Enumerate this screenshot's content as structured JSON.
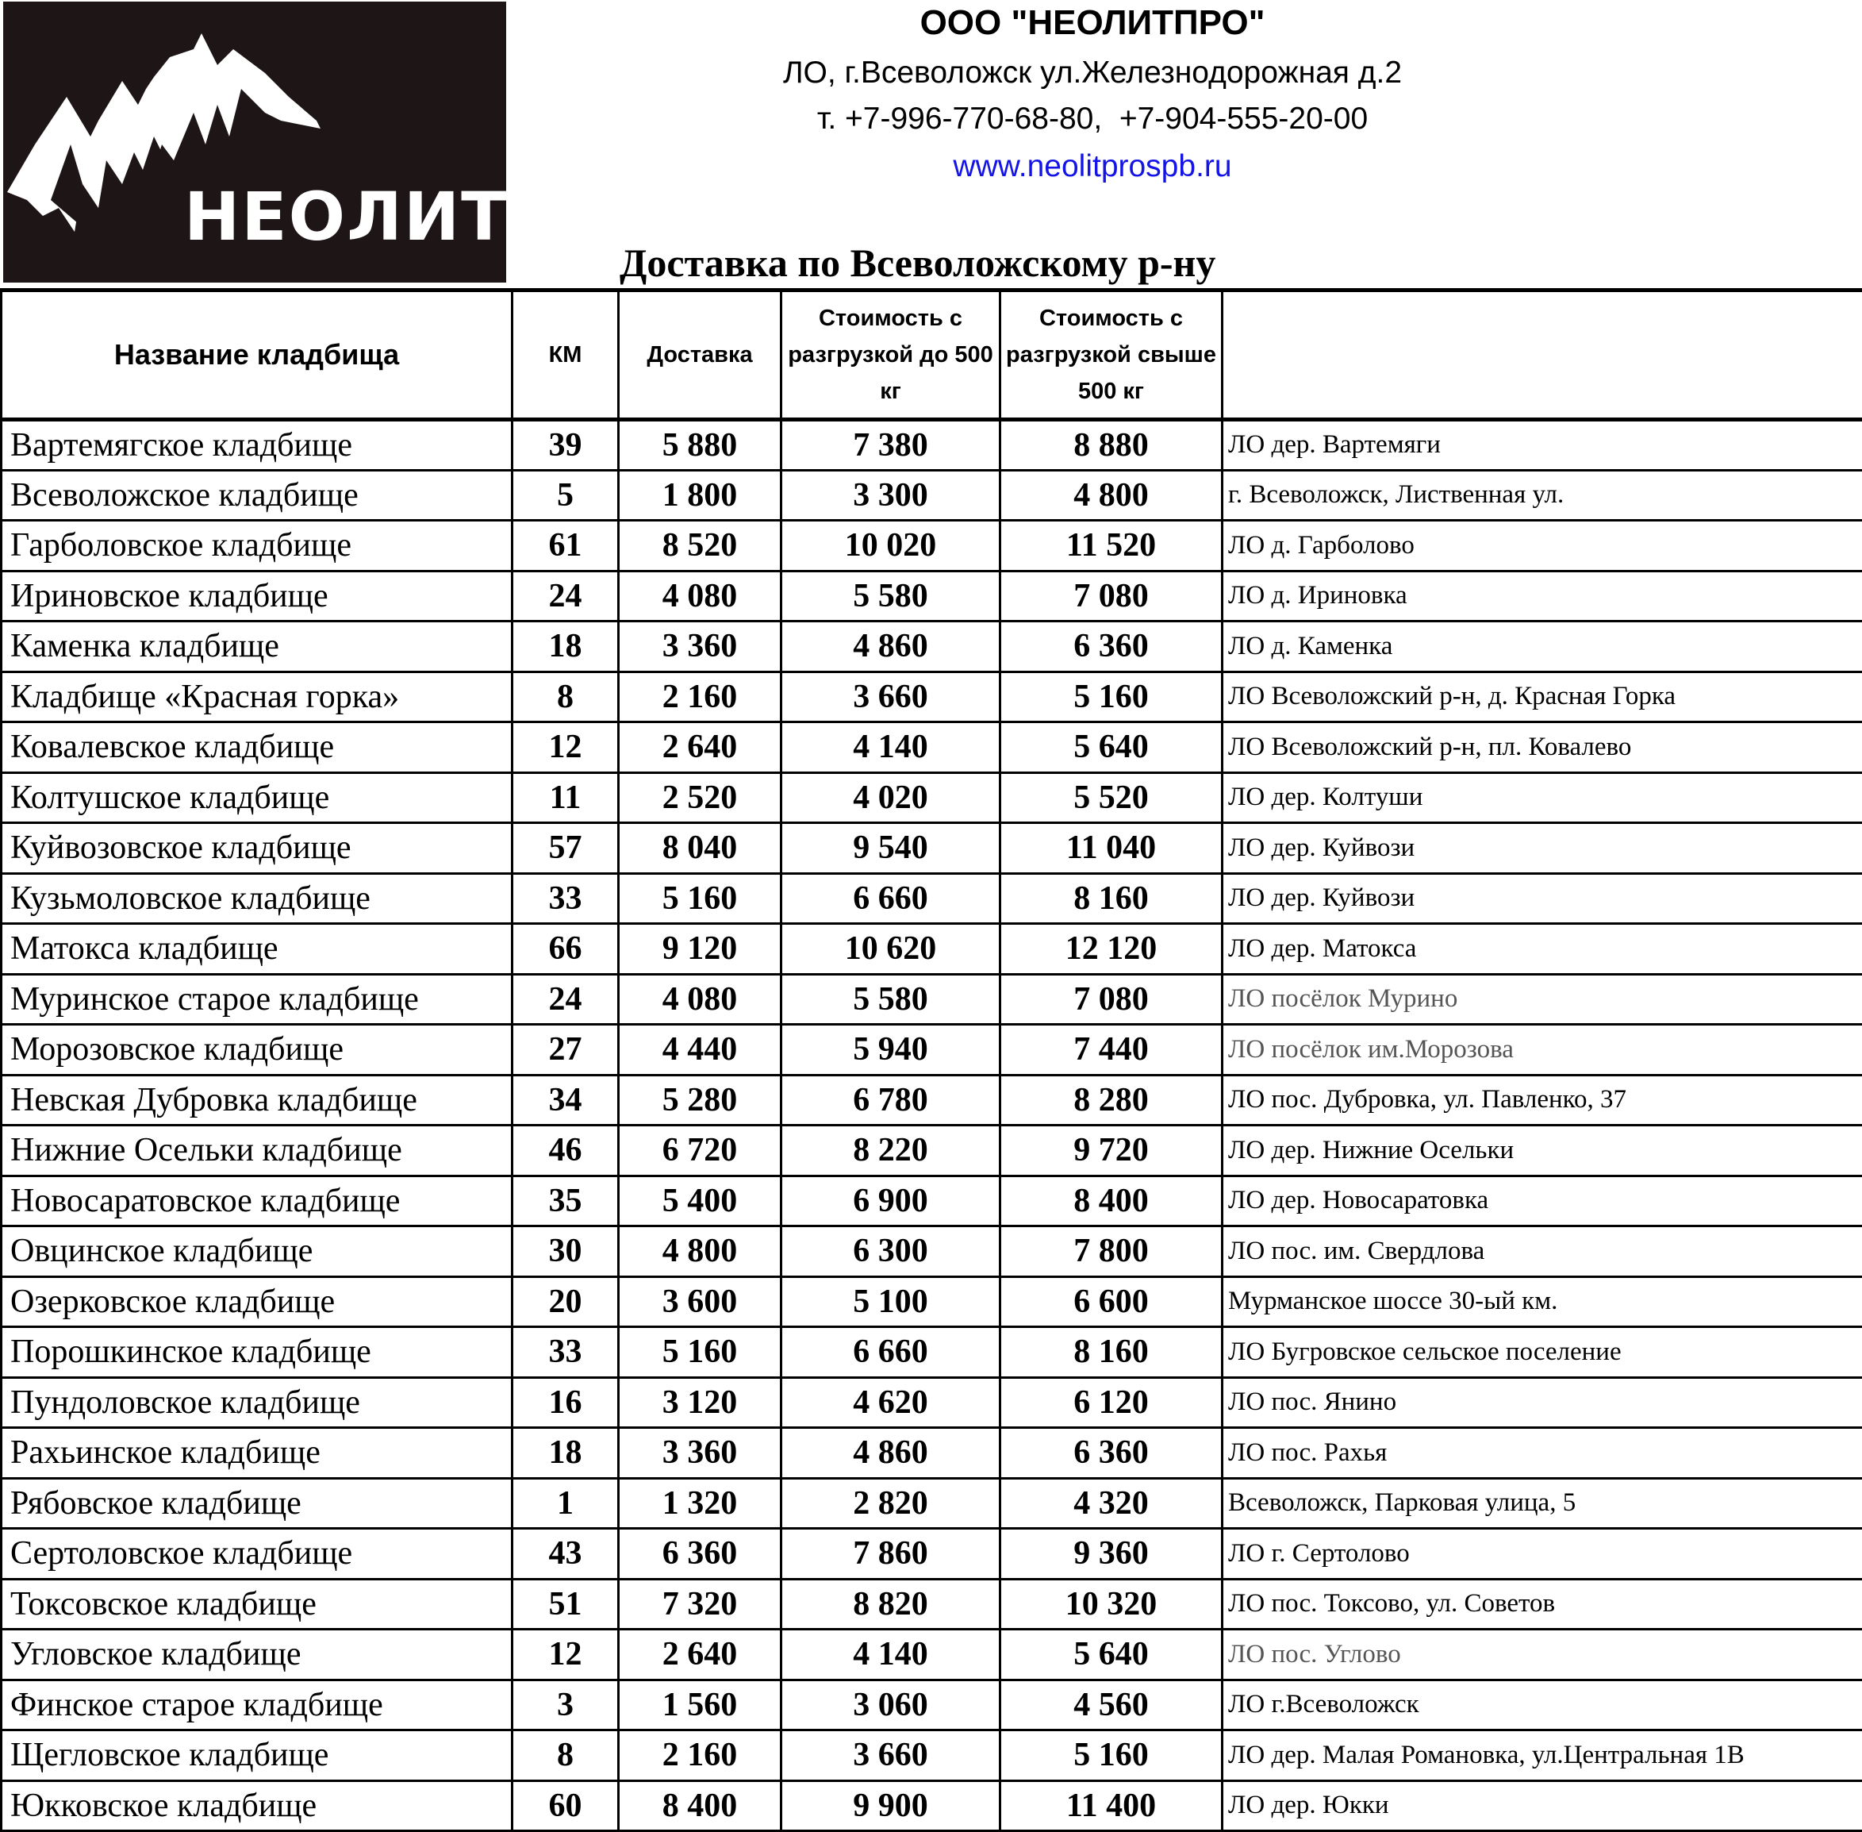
{
  "logo": {
    "text": "НЕОЛИТ"
  },
  "header": {
    "company": "ООО \"НЕОЛИТПРО\"",
    "address": "ЛО, г.Всеволожск ул.Железнодорожная д.2",
    "phones": "т. +7-996-770-68-80,  +7-904-555-20-00",
    "website": "www.neolitprospb.ru",
    "website_color": "#1414e6",
    "subtitle": "Доставка по Всеволожскому р-ну"
  },
  "table": {
    "columns": [
      "Название кладбища",
      "КМ",
      "Доставка",
      "Стоимость с разгрузкой до 500 кг",
      "Стоимость с разгрузкой свыше 500 кг",
      ""
    ],
    "rows": [
      {
        "name": "Вартемягское кладбище",
        "km": "39",
        "delivery": "5 880",
        "upto500": "7 380",
        "over500": "8 880",
        "address": "ЛО дер. Вартемяги"
      },
      {
        "name": "Всеволожское кладбище",
        "km": "5",
        "delivery": "1 800",
        "upto500": "3 300",
        "over500": "4 800",
        "address": "г. Всеволожск, Лиственная ул."
      },
      {
        "name": "Гарболовское кладбище",
        "km": "61",
        "delivery": "8 520",
        "upto500": "10 020",
        "over500": "11 520",
        "address": "ЛО д. Гарболово"
      },
      {
        "name": "Ириновское кладбище",
        "km": "24",
        "delivery": "4 080",
        "upto500": "5 580",
        "over500": "7 080",
        "address": "ЛО д. Ириновка"
      },
      {
        "name": "Каменка кладбище",
        "km": "18",
        "delivery": "3 360",
        "upto500": "4 860",
        "over500": "6 360",
        "address": "ЛО д. Каменка"
      },
      {
        "name": "Кладбище «Красная горка»",
        "km": "8",
        "delivery": "2 160",
        "upto500": "3 660",
        "over500": "5 160",
        "address": "ЛО Всеволожский р-н, д. Красная Горка"
      },
      {
        "name": "Ковалевское кладбище",
        "km": "12",
        "delivery": "2 640",
        "upto500": "4 140",
        "over500": "5 640",
        "address": "ЛО Всеволожский р-н, пл. Ковалево"
      },
      {
        "name": "Колтушское кладбище",
        "km": "11",
        "delivery": "2 520",
        "upto500": "4 020",
        "over500": "5 520",
        "address": "ЛО дер. Колтуши"
      },
      {
        "name": "Куйвозовское кладбище",
        "km": "57",
        "delivery": "8 040",
        "upto500": "9 540",
        "over500": "11 040",
        "address": "ЛО дер. Куйвози"
      },
      {
        "name": "Кузьмоловское кладбище",
        "km": "33",
        "delivery": "5 160",
        "upto500": "6 660",
        "over500": "8 160",
        "address": "ЛО дер. Куйвози"
      },
      {
        "name": "Матокса кладбище",
        "km": "66",
        "delivery": "9 120",
        "upto500": "10 620",
        "over500": "12 120",
        "address": "ЛО дер. Матокса"
      },
      {
        "name": "Муринское старое кладбище",
        "km": "24",
        "delivery": "4 080",
        "upto500": "5 580",
        "over500": "7 080",
        "address": "ЛО посёлок Мурино",
        "gray": true
      },
      {
        "name": "Морозовское кладбище",
        "km": "27",
        "delivery": "4 440",
        "upto500": "5 940",
        "over500": "7 440",
        "address": "ЛО посёлок им.Морозова",
        "gray": true
      },
      {
        "name": "Невская Дубровка кладбище",
        "km": "34",
        "delivery": "5 280",
        "upto500": "6 780",
        "over500": "8 280",
        "address": "ЛО пос. Дубровка, ул. Павленко, 37"
      },
      {
        "name": "Нижние Осельки кладбище",
        "km": "46",
        "delivery": "6 720",
        "upto500": "8 220",
        "over500": "9 720",
        "address": "ЛО дер. Нижние Осельки"
      },
      {
        "name": "Новосаратовское кладбище",
        "km": "35",
        "delivery": "5 400",
        "upto500": "6 900",
        "over500": "8 400",
        "address": "ЛО дер. Новосаратовка"
      },
      {
        "name": "Овцинское кладбище",
        "km": "30",
        "delivery": "4 800",
        "upto500": "6 300",
        "over500": "7 800",
        "address": "ЛО пос. им. Свердлова"
      },
      {
        "name": "Озерковское кладбище",
        "km": "20",
        "delivery": "3 600",
        "upto500": "5 100",
        "over500": "6 600",
        "address": "Мурманское шоссе 30-ый км."
      },
      {
        "name": "Порошкинское кладбище",
        "km": "33",
        "delivery": "5 160",
        "upto500": "6 660",
        "over500": "8 160",
        "address": "ЛО Бугровское сельское поселение"
      },
      {
        "name": "Пундоловское кладбище",
        "km": "16",
        "delivery": "3 120",
        "upto500": "4 620",
        "over500": "6 120",
        "address": "ЛО пос. Янино"
      },
      {
        "name": "Рахьинское кладбище",
        "km": "18",
        "delivery": "3 360",
        "upto500": "4 860",
        "over500": "6 360",
        "address": "ЛО пос. Рахья"
      },
      {
        "name": "Рябовское кладбище",
        "km": "1",
        "delivery": "1 320",
        "upto500": "2 820",
        "over500": "4 320",
        "address": "Всеволожск, Парковая улица, 5"
      },
      {
        "name": "Сертоловское кладбище",
        "km": "43",
        "delivery": "6 360",
        "upto500": "7 860",
        "over500": "9 360",
        "address": "ЛО г. Сертолово"
      },
      {
        "name": "Токсовское кладбище",
        "km": "51",
        "delivery": "7 320",
        "upto500": "8 820",
        "over500": "10 320",
        "address": "ЛО пос. Токсово, ул. Советов"
      },
      {
        "name": "Угловское кладбище",
        "km": "12",
        "delivery": "2 640",
        "upto500": "4 140",
        "over500": "5 640",
        "address": "ЛО пос. Углово",
        "gray": true
      },
      {
        "name": "Финское старое кладбище",
        "km": "3",
        "delivery": "1 560",
        "upto500": "3 060",
        "over500": "4 560",
        "address": "ЛО г.Всеволожск"
      },
      {
        "name": "Щегловское кладбище",
        "km": "8",
        "delivery": "2 160",
        "upto500": "3 660",
        "over500": "5 160",
        "address": "ЛО дер. Малая Романовка, ул.Центральная 1В"
      },
      {
        "name": "Юкковское кладбище",
        "km": "60",
        "delivery": "8 400",
        "upto500": "9 900",
        "over500": "11 400",
        "address": "ЛО дер. Юкки"
      }
    ]
  }
}
